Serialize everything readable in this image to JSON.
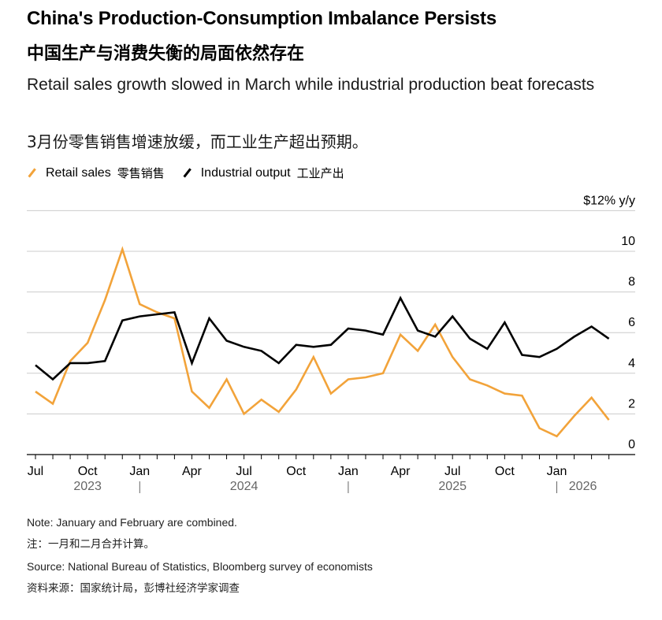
{
  "header": {
    "title": "China's Production-Consumption Imbalance Persists",
    "title_zh": "中国生产与消费失衡的局面依然存在",
    "subtitle": "Retail sales growth slowed in March while industrial production beat forecasts",
    "subtitle_zh": "3月份零售销售增速放缓，而工业生产超出预期。"
  },
  "legend": [
    {
      "label": "Retail sales",
      "label_zh": "零售销售",
      "color": "#f2a33a"
    },
    {
      "label": "Industrial output",
      "label_zh": "工业产出",
      "color": "#000000"
    }
  ],
  "footer": {
    "note": "Note: January and February are combined.",
    "note_zh": "注：一月和二月合并计算。",
    "source": "Source: National Bureau of Statistics, Bloomberg survey of economists",
    "source_zh": "资料来源：国家统计局，彭博社经济学家调查"
  },
  "chart_data": {
    "type": "line",
    "y_unit_label": "$12% y/y",
    "ylim": [
      0,
      12
    ],
    "yticks": [
      0,
      2,
      4,
      6,
      8,
      10
    ],
    "grid": true,
    "y_axis_side": "right",
    "legend_position": "top-left",
    "x_tick_labels": [
      {
        "index": 0,
        "label": "Jul"
      },
      {
        "index": 3,
        "label": "Oct"
      },
      {
        "index": 6,
        "label": "Jan"
      },
      {
        "index": 9,
        "label": "Apr"
      },
      {
        "index": 12,
        "label": "Jul"
      },
      {
        "index": 15,
        "label": "Oct"
      },
      {
        "index": 18,
        "label": "Jan"
      },
      {
        "index": 21,
        "label": "Apr"
      },
      {
        "index": 24,
        "label": "Jul"
      },
      {
        "index": 27,
        "label": "Oct"
      },
      {
        "index": 30,
        "label": "Jan"
      }
    ],
    "year_labels": [
      {
        "center_index": 3,
        "label": "2023"
      },
      {
        "center_index": 12,
        "label": "2024"
      },
      {
        "center_index": 24,
        "label": "2025"
      },
      {
        "center_index": 31.5,
        "label": "2026"
      }
    ],
    "year_separators": [
      6,
      18,
      30
    ],
    "x_count": 34,
    "series": [
      {
        "name": "Retail sales",
        "color": "#f2a33a",
        "points": [
          [
            0,
            3.1
          ],
          [
            1,
            2.5
          ],
          [
            2,
            4.6
          ],
          [
            3,
            5.5
          ],
          [
            4,
            7.6
          ],
          [
            5,
            10.1
          ],
          [
            6,
            7.4
          ],
          [
            7,
            7.0
          ],
          [
            8,
            6.7
          ],
          [
            9,
            3.1
          ],
          [
            10,
            2.3
          ],
          [
            11,
            3.7
          ],
          [
            12,
            2.0
          ],
          [
            13,
            2.7
          ],
          [
            14,
            2.1
          ],
          [
            15,
            3.2
          ],
          [
            16,
            4.8
          ],
          [
            17,
            3.0
          ],
          [
            18,
            3.7
          ],
          [
            19,
            3.8
          ],
          [
            20,
            4.0
          ],
          [
            21,
            5.9
          ],
          [
            22,
            5.1
          ],
          [
            23,
            6.4
          ],
          [
            24,
            4.8
          ],
          [
            25,
            3.7
          ],
          [
            26,
            3.4
          ],
          [
            27,
            3.0
          ],
          [
            28,
            2.9
          ],
          [
            29,
            1.3
          ],
          [
            30,
            0.9
          ],
          [
            31,
            1.9
          ],
          [
            32,
            2.8
          ],
          [
            33,
            1.7
          ]
        ]
      },
      {
        "name": "Industrial output",
        "color": "#000000",
        "points": [
          [
            0,
            4.4
          ],
          [
            1,
            3.7
          ],
          [
            2,
            4.5
          ],
          [
            3,
            4.5
          ],
          [
            4,
            4.6
          ],
          [
            5,
            6.6
          ],
          [
            6,
            6.8
          ],
          [
            7,
            6.9
          ],
          [
            8,
            7.0
          ],
          [
            9,
            4.5
          ],
          [
            10,
            6.7
          ],
          [
            11,
            5.6
          ],
          [
            12,
            5.3
          ],
          [
            13,
            5.1
          ],
          [
            14,
            4.5
          ],
          [
            15,
            5.4
          ],
          [
            16,
            5.3
          ],
          [
            17,
            5.4
          ],
          [
            18,
            6.2
          ],
          [
            19,
            6.1
          ],
          [
            20,
            5.9
          ],
          [
            21,
            7.7
          ],
          [
            22,
            6.1
          ],
          [
            23,
            5.8
          ],
          [
            24,
            6.8
          ],
          [
            25,
            5.7
          ],
          [
            26,
            5.2
          ],
          [
            27,
            6.5
          ],
          [
            28,
            4.9
          ],
          [
            29,
            4.8
          ],
          [
            30,
            5.2
          ],
          [
            31,
            5.8
          ],
          [
            32,
            6.3
          ],
          [
            33,
            5.7
          ]
        ]
      }
    ]
  }
}
